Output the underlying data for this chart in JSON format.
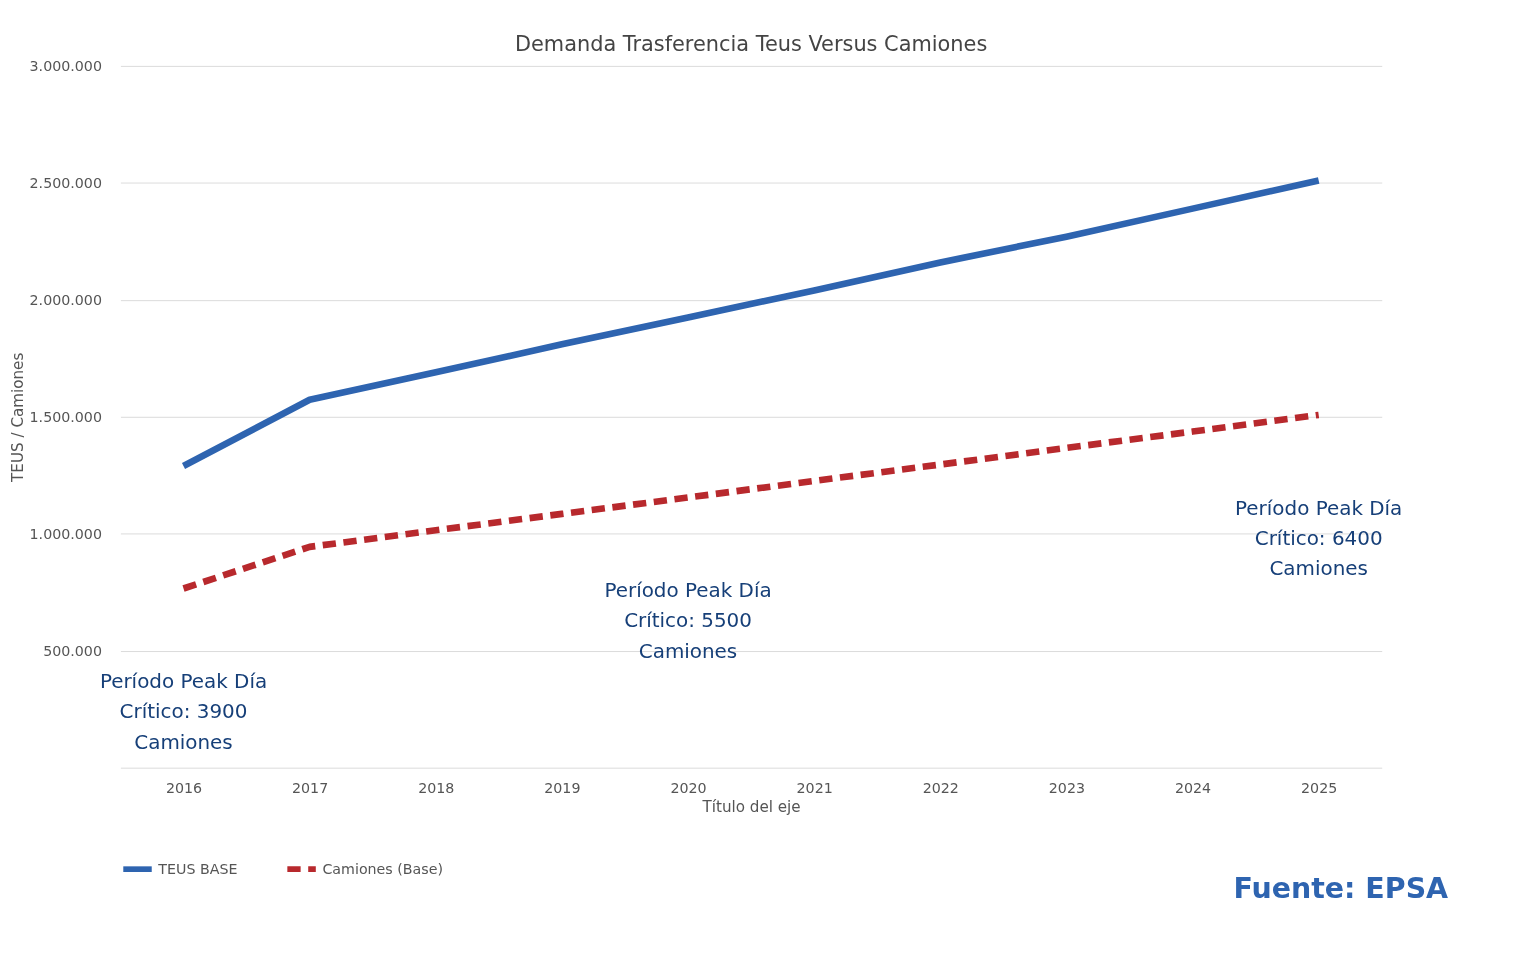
{
  "chart_data": {
    "type": "line",
    "title": "Demanda Trasferencia Teus Versus Camiones",
    "xlabel": "Título del eje",
    "ylabel": "TEUS / Camiones",
    "categories": [
      "2016",
      "2017",
      "2018",
      "2019",
      "2020",
      "2021",
      "2022",
      "2023",
      "2024",
      "2025"
    ],
    "series": [
      {
        "name": "TEUS BASE",
        "color": "#2e64b0",
        "line_style": "solid",
        "values": [
          1290000,
          1573000,
          1690000,
          1810000,
          1925000,
          2040000,
          2160000,
          2270000,
          2390000,
          2510000
        ]
      },
      {
        "name": "Camiones (Base)",
        "color": "#b8292d",
        "line_style": "dashed",
        "values": [
          766000,
          944000,
          1015000,
          1085000,
          1155000,
          1226000,
          1296000,
          1367000,
          1437000,
          1508000
        ]
      }
    ],
    "ylim": [
      0,
      3000000
    ],
    "yticks": [
      {
        "value": 500000,
        "label": "500.000"
      },
      {
        "value": 1000000,
        "label": "1.000.000"
      },
      {
        "value": 1500000,
        "label": "1.500.000"
      },
      {
        "value": 2000000,
        "label": "2.000.000"
      },
      {
        "value": 2500000,
        "label": "2.500.000"
      },
      {
        "value": 3000000,
        "label": "3.000.000"
      }
    ],
    "grid": "y",
    "legend": "bottom",
    "annotations": [
      "Período Peak Día Crítico: 3900 Camiones",
      "Período Peak Día Crítico: 5500 Camiones",
      "Período Peak Día Crítico: 6400 Camiones",
      "Fuente: EPSA"
    ]
  }
}
